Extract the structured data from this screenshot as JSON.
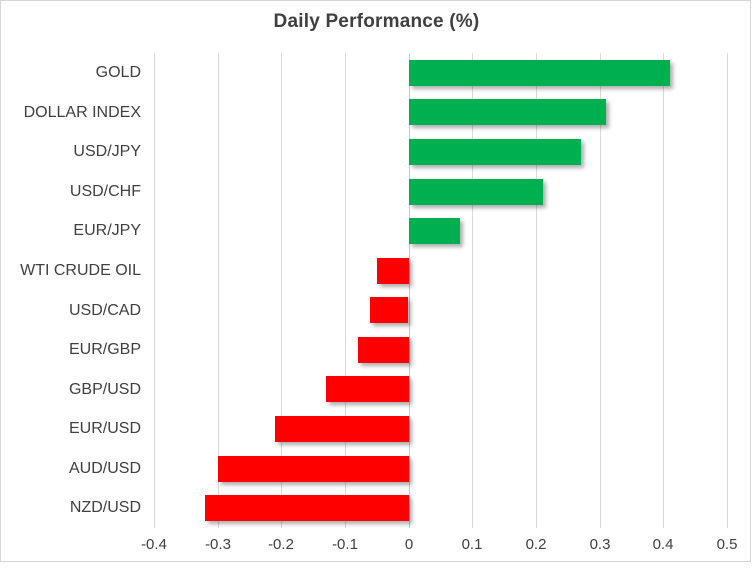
{
  "chart_data": {
    "type": "bar",
    "orientation": "horizontal",
    "title": "Daily Performance (%)",
    "categories": [
      "GOLD",
      "DOLLAR INDEX",
      "USD/JPY",
      "USD/CHF",
      "EUR/JPY",
      "WTI CRUDE OIL",
      "USD/CAD",
      "EUR/GBP",
      "GBP/USD",
      "EUR/USD",
      "AUD/USD",
      "NZD/USD"
    ],
    "values": [
      0.41,
      0.31,
      0.27,
      0.21,
      0.08,
      -0.05,
      -0.06,
      -0.08,
      -0.13,
      -0.21,
      -0.3,
      -0.32
    ],
    "xlim": [
      -0.4,
      0.5
    ],
    "xticks": [
      -0.4,
      -0.3,
      -0.2,
      -0.1,
      0,
      0.1,
      0.2,
      0.3,
      0.4,
      0.5
    ],
    "xtick_labels": [
      "-0.4",
      "-0.3",
      "-0.2",
      "-0.1",
      "0",
      "0.1",
      "0.2",
      "0.3",
      "0.4",
      "0.5"
    ],
    "grid": true,
    "legend": false,
    "xlabel": "",
    "ylabel": "",
    "colors": {
      "positive": "#00B050",
      "negative": "#FF0000",
      "gridline": "#D9D9D9",
      "zero_line": "#C9C9C9",
      "text": "#404040"
    }
  }
}
